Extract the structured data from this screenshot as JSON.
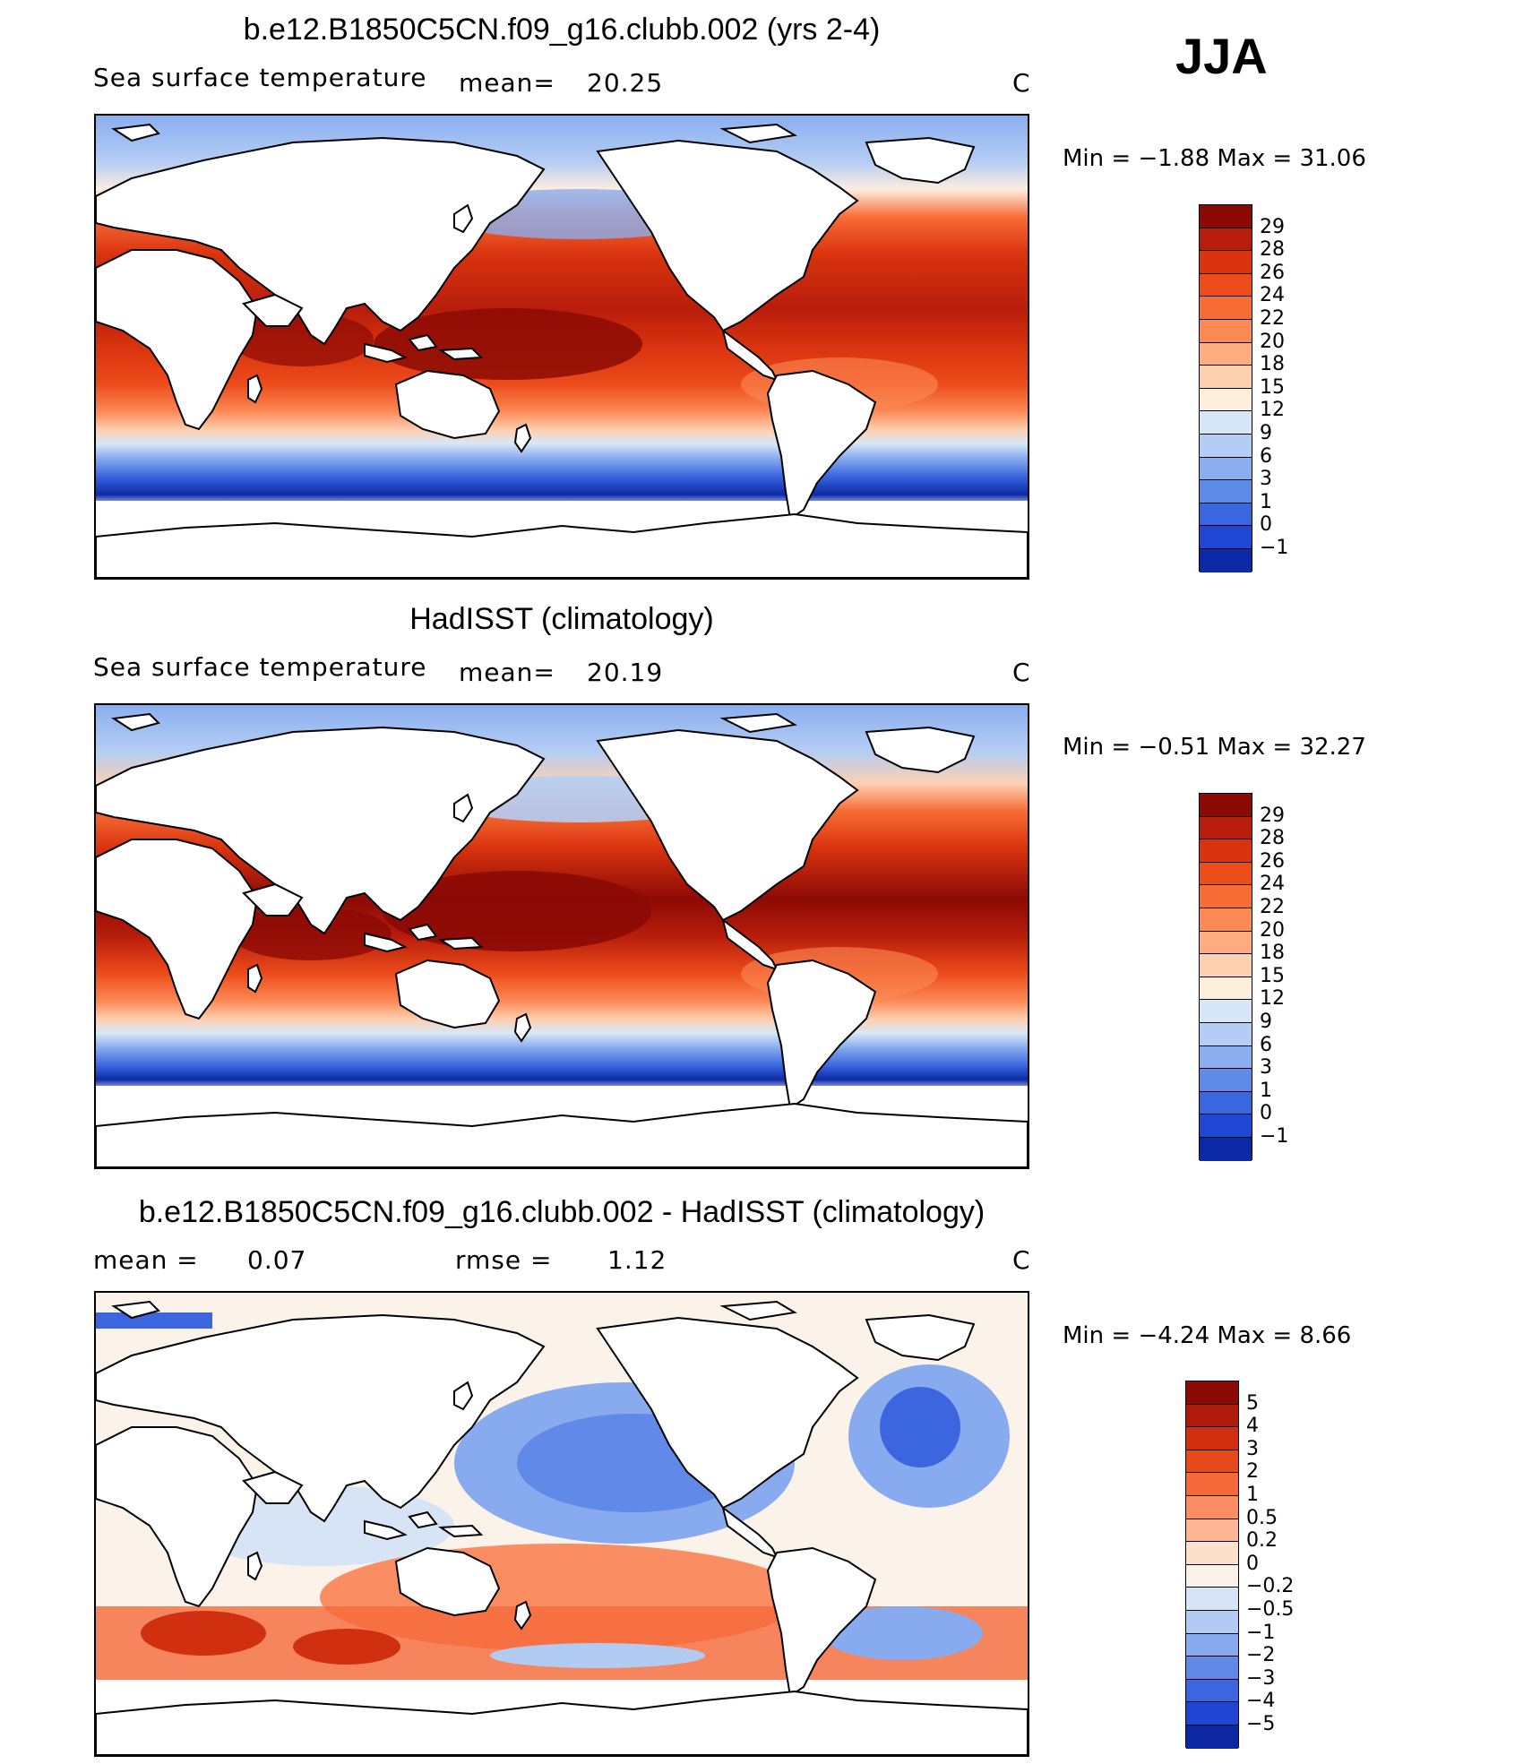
{
  "season": "JJA",
  "panels": [
    {
      "title": "b.e12.B1850C5CN.f09_g16.clubb.002 (yrs 2-4)",
      "left_label": "Sea surface temperature",
      "stat1": "mean=",
      "stat1_value": "20.25",
      "stat2": "",
      "stat2_value": "",
      "units": "C",
      "minmax": "Min =   −1.88  Max =    31.06",
      "kind": "abs",
      "colorbar": {
        "labels": [
          "29",
          "28",
          "26",
          "24",
          "22",
          "20",
          "18",
          "15",
          "12",
          "9",
          "6",
          "3",
          "1",
          "0",
          "−1"
        ],
        "colors": [
          "#8c0a05",
          "#b81d0b",
          "#d9330f",
          "#ec4b1a",
          "#f76b34",
          "#fb8a55",
          "#fdab7f",
          "#fdd0b2",
          "#fdeede",
          "#d8e7f7",
          "#b4cdf4",
          "#8aaeef",
          "#5e8be8",
          "#3a66df",
          "#1f46d4",
          "#0c2aa8"
        ]
      }
    },
    {
      "title": "HadISST (climatology)",
      "left_label": "Sea surface temperature",
      "stat1": "mean=",
      "stat1_value": "20.19",
      "stat2": "",
      "stat2_value": "",
      "units": "C",
      "minmax": "Min =   −0.51  Max =    32.27",
      "kind": "abs",
      "colorbar": {
        "labels": [
          "29",
          "28",
          "26",
          "24",
          "22",
          "20",
          "18",
          "15",
          "12",
          "9",
          "6",
          "3",
          "1",
          "0",
          "−1"
        ],
        "colors": [
          "#8c0a05",
          "#b81d0b",
          "#d9330f",
          "#ec4b1a",
          "#f76b34",
          "#fb8a55",
          "#fdab7f",
          "#fdd0b2",
          "#fdeede",
          "#d8e7f7",
          "#b4cdf4",
          "#8aaeef",
          "#5e8be8",
          "#3a66df",
          "#1f46d4",
          "#0c2aa8"
        ]
      }
    },
    {
      "title": "b.e12.B1850C5CN.f09_g16.clubb.002 - HadISST (climatology)",
      "left_label": "mean =",
      "stat1": "0.07",
      "stat1_value": "",
      "stat2": "rmse =",
      "stat2_value": "1.12",
      "units": "C",
      "minmax": "Min =   −4.24  Max =     8.66",
      "kind": "diff",
      "colorbar": {
        "labels": [
          "5",
          "4",
          "3",
          "2",
          "1",
          "0.5",
          "0.2",
          "0",
          "−0.2",
          "−0.5",
          "−1",
          "−2",
          "−3",
          "−4",
          "−5"
        ],
        "colors": [
          "#8c0a05",
          "#b01a0a",
          "#d0300f",
          "#e8491b",
          "#f5693a",
          "#fa8d62",
          "#fcb694",
          "#fde0cc",
          "#fbf3ea",
          "#d6e4f6",
          "#b2cbf2",
          "#88aaee",
          "#6189e7",
          "#3c66df",
          "#2244d2",
          "#0d27a3"
        ]
      }
    }
  ]
}
